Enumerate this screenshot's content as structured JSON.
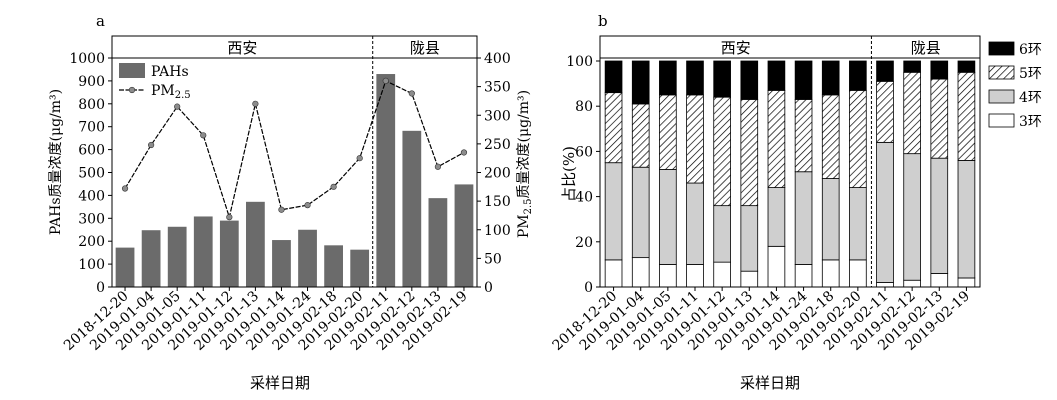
{
  "chart_data": [
    {
      "panel_label": "a",
      "type": "bar+line",
      "xlabel": "采样日期",
      "ylabel_left": "PAHs质量浓度(μg/m³)",
      "ylabel_right_main": "PM",
      "ylabel_right_sub": "2.5",
      "ylabel_right_rest": "质量浓度(μg/m³)",
      "ylim_left": [
        0,
        1000
      ],
      "yticks_left": [
        0,
        100,
        200,
        300,
        400,
        500,
        600,
        700,
        800,
        900,
        1000
      ],
      "ylim_right": [
        0,
        400
      ],
      "yticks_right": [
        0,
        50,
        100,
        150,
        200,
        250,
        300,
        350,
        400
      ],
      "region_labels": [
        "西安",
        "陇县"
      ],
      "region_split_after": 9,
      "categories": [
        "2018-12-20",
        "2019-01-04",
        "2019-01-05",
        "2019-01-11",
        "2019-01-12",
        "2019-01-13",
        "2019-01-14",
        "2019-01-24",
        "2019-02-18",
        "2019-02-20",
        "2019-02-11",
        "2019-02-12",
        "2019-02-13",
        "2019-02-19"
      ],
      "series": [
        {
          "name": "PAHs",
          "kind": "bar",
          "axis": "left",
          "color": "#6b6b6b",
          "values": [
            172,
            248,
            263,
            308,
            290,
            372,
            205,
            250,
            182,
            163,
            930,
            682,
            388,
            448
          ]
        },
        {
          "name": "PM",
          "name_sub": "2.5",
          "kind": "line",
          "axis": "right",
          "color": "#000000",
          "marker_color": "#8c8c8c",
          "values": [
            172,
            248,
            315,
            265,
            122,
            320,
            135,
            143,
            175,
            225,
            360,
            338,
            210,
            235
          ]
        }
      ]
    },
    {
      "panel_label": "b",
      "type": "stacked-bar",
      "xlabel": "采样日期",
      "ylabel": "占比(%)",
      "ylim": [
        0,
        100
      ],
      "yticks": [
        0,
        20,
        40,
        60,
        80,
        100
      ],
      "region_labels": [
        "西安",
        "陇县"
      ],
      "region_split_after": 9,
      "categories": [
        "2018-12-20",
        "2019-01-04",
        "2019-01-05",
        "2019-01-11",
        "2019-01-12",
        "2019-01-13",
        "2019-01-14",
        "2019-01-24",
        "2019-02-18",
        "2019-02-20",
        "2019-02-11",
        "2019-02-12",
        "2019-02-13",
        "2019-02-19"
      ],
      "series": [
        {
          "name": "3环",
          "fill": "white",
          "values": [
            12,
            13,
            10,
            10,
            11,
            7,
            18,
            10,
            12,
            12,
            2,
            3,
            6,
            4
          ]
        },
        {
          "name": "4环",
          "fill": "gray",
          "values": [
            43,
            40,
            42,
            36,
            25,
            29,
            26,
            41,
            36,
            32,
            62,
            56,
            51,
            52
          ]
        },
        {
          "name": "5环",
          "fill": "hatch",
          "values": [
            31,
            28,
            33,
            39,
            48,
            47,
            43,
            32,
            37,
            43,
            27,
            36,
            35,
            39
          ]
        },
        {
          "name": "6环",
          "fill": "black",
          "values": [
            14,
            19,
            15,
            15,
            16,
            17,
            13,
            17,
            15,
            13,
            9,
            5,
            8,
            5
          ]
        }
      ]
    }
  ]
}
